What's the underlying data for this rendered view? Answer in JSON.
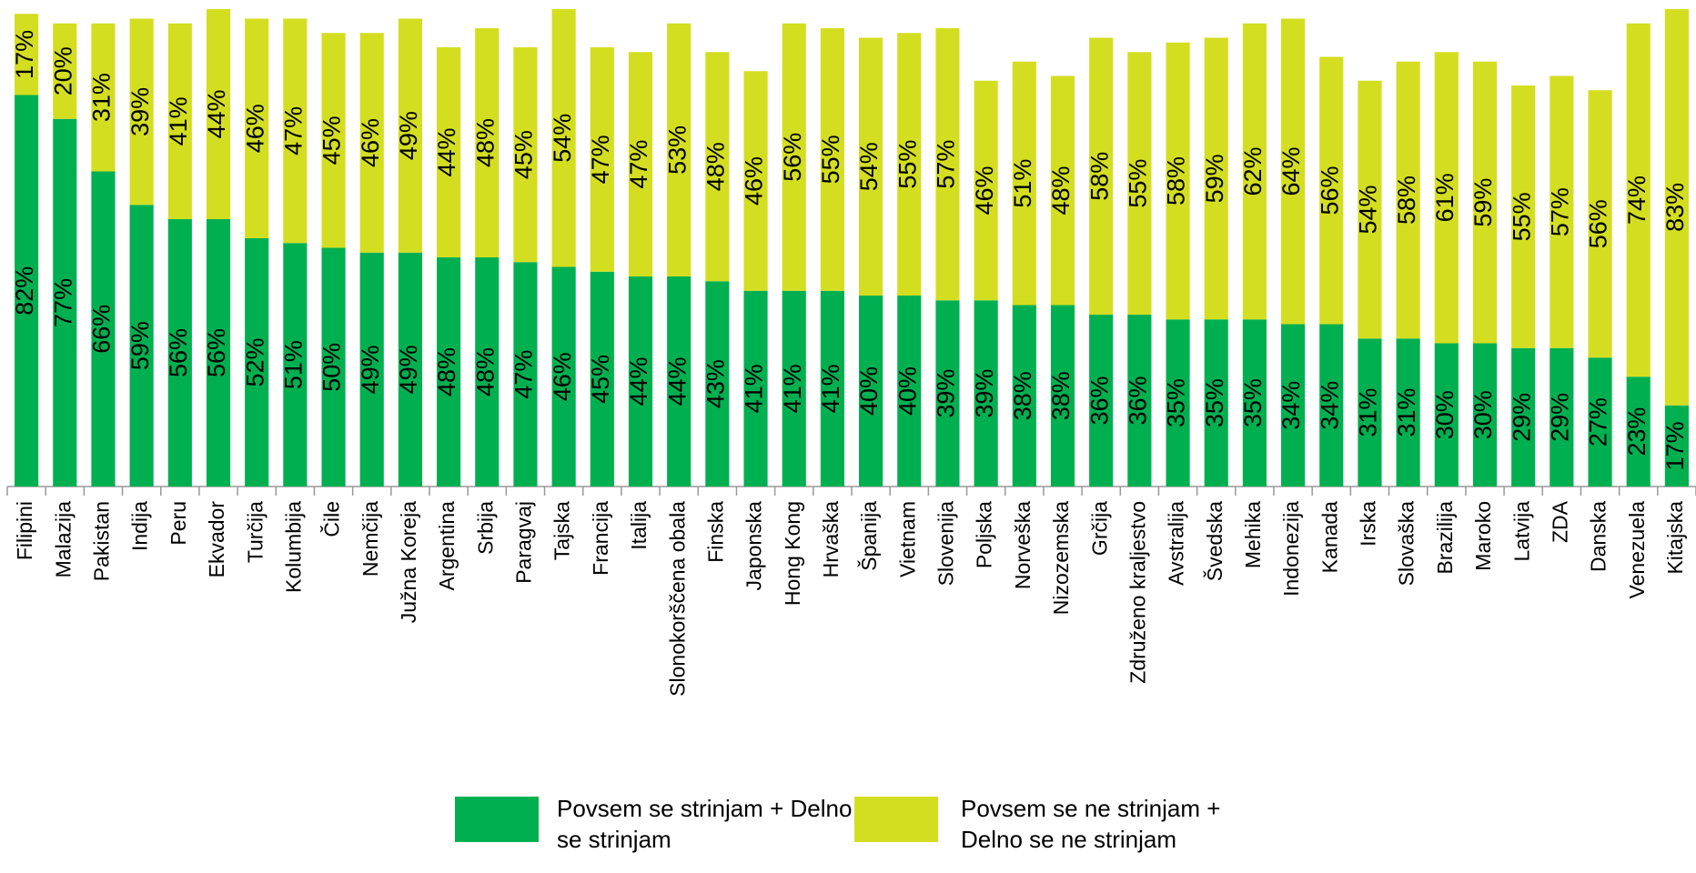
{
  "chart_data": {
    "type": "stacked_bar",
    "categories": [
      "Filipini",
      "Malazija",
      "Pakistan",
      "Indija",
      "Peru",
      "Ekvador",
      "Turčija",
      "Kolumbija",
      "Čile",
      "Nemčija",
      "Južna Koreja",
      "Argentina",
      "Srbija",
      "Paragvaj",
      "Tajska",
      "Francija",
      "Italija",
      "Slonokorščena obala",
      "Finska",
      "Japonska",
      "Hong Kong",
      "Hrvaška",
      "Španija",
      "Vietnam",
      "Slovenija",
      "Poljska",
      "Norveška",
      "Nizozemska",
      "Grčija",
      "Združeno kraljestvo",
      "Avstralija",
      "Švedska",
      "Mehika",
      "Indonezija",
      "Kanada",
      "Irska",
      "Slovaška",
      "Brazilija",
      "Maroko",
      "Latvija",
      "ZDA",
      "Danska",
      "Venezuela",
      "Kitajska"
    ],
    "series": [
      {
        "name": "Povsem se strinjam + Delno se strinjam",
        "color": "#00b050",
        "values": [
          82,
          77,
          66,
          59,
          56,
          56,
          52,
          51,
          50,
          49,
          49,
          48,
          48,
          47,
          46,
          45,
          44,
          44,
          43,
          41,
          41,
          41,
          40,
          40,
          39,
          39,
          38,
          38,
          36,
          36,
          35,
          35,
          35,
          34,
          34,
          31,
          31,
          30,
          30,
          29,
          29,
          27,
          23,
          17
        ],
        "value_labels": [
          "82%",
          "77%",
          "66%",
          "59%",
          "56%",
          "56%",
          "52%",
          "51%",
          "50%",
          "49%",
          "49%",
          "48%",
          "48%",
          "47%",
          "46%",
          "45%",
          "44%",
          "44%",
          "43%",
          "41%",
          "41%",
          "41%",
          "40%",
          "40%",
          "39%",
          "39%",
          "38%",
          "38%",
          "36%",
          "36%",
          "35%",
          "35%",
          "35%",
          "34%",
          "34%",
          "31%",
          "31%",
          "30%",
          "30%",
          "29%",
          "29%",
          "27%",
          "23%",
          "17%"
        ]
      },
      {
        "name": "Povsem se ne strinjam + Delno se ne strinjam",
        "color": "#d4de21",
        "values": [
          17,
          20,
          31,
          39,
          41,
          44,
          46,
          47,
          45,
          46,
          49,
          44,
          48,
          45,
          54,
          47,
          47,
          53,
          48,
          46,
          56,
          55,
          54,
          55,
          57,
          46,
          51,
          48,
          58,
          55,
          58,
          59,
          62,
          64,
          56,
          54,
          58,
          61,
          59,
          55,
          57,
          56,
          74,
          83
        ],
        "value_labels": [
          "17%",
          "20%",
          "31%",
          "39%",
          "41%",
          "44%",
          "46%",
          "47%",
          "45%",
          "46%",
          "49%",
          "44%",
          "48%",
          "45%",
          "54%",
          "47%",
          "47%",
          "53%",
          "48%",
          "46%",
          "56%",
          "55%",
          "54%",
          "55%",
          "57%",
          "46%",
          "51%",
          "48%",
          "58%",
          "55%",
          "58%",
          "59%",
          "62%",
          "64%",
          "56%",
          "54%",
          "58%",
          "61%",
          "59%",
          "55%",
          "57%",
          "56%",
          "74%",
          "83%"
        ]
      }
    ],
    "ylim": [
      0,
      100
    ]
  }
}
